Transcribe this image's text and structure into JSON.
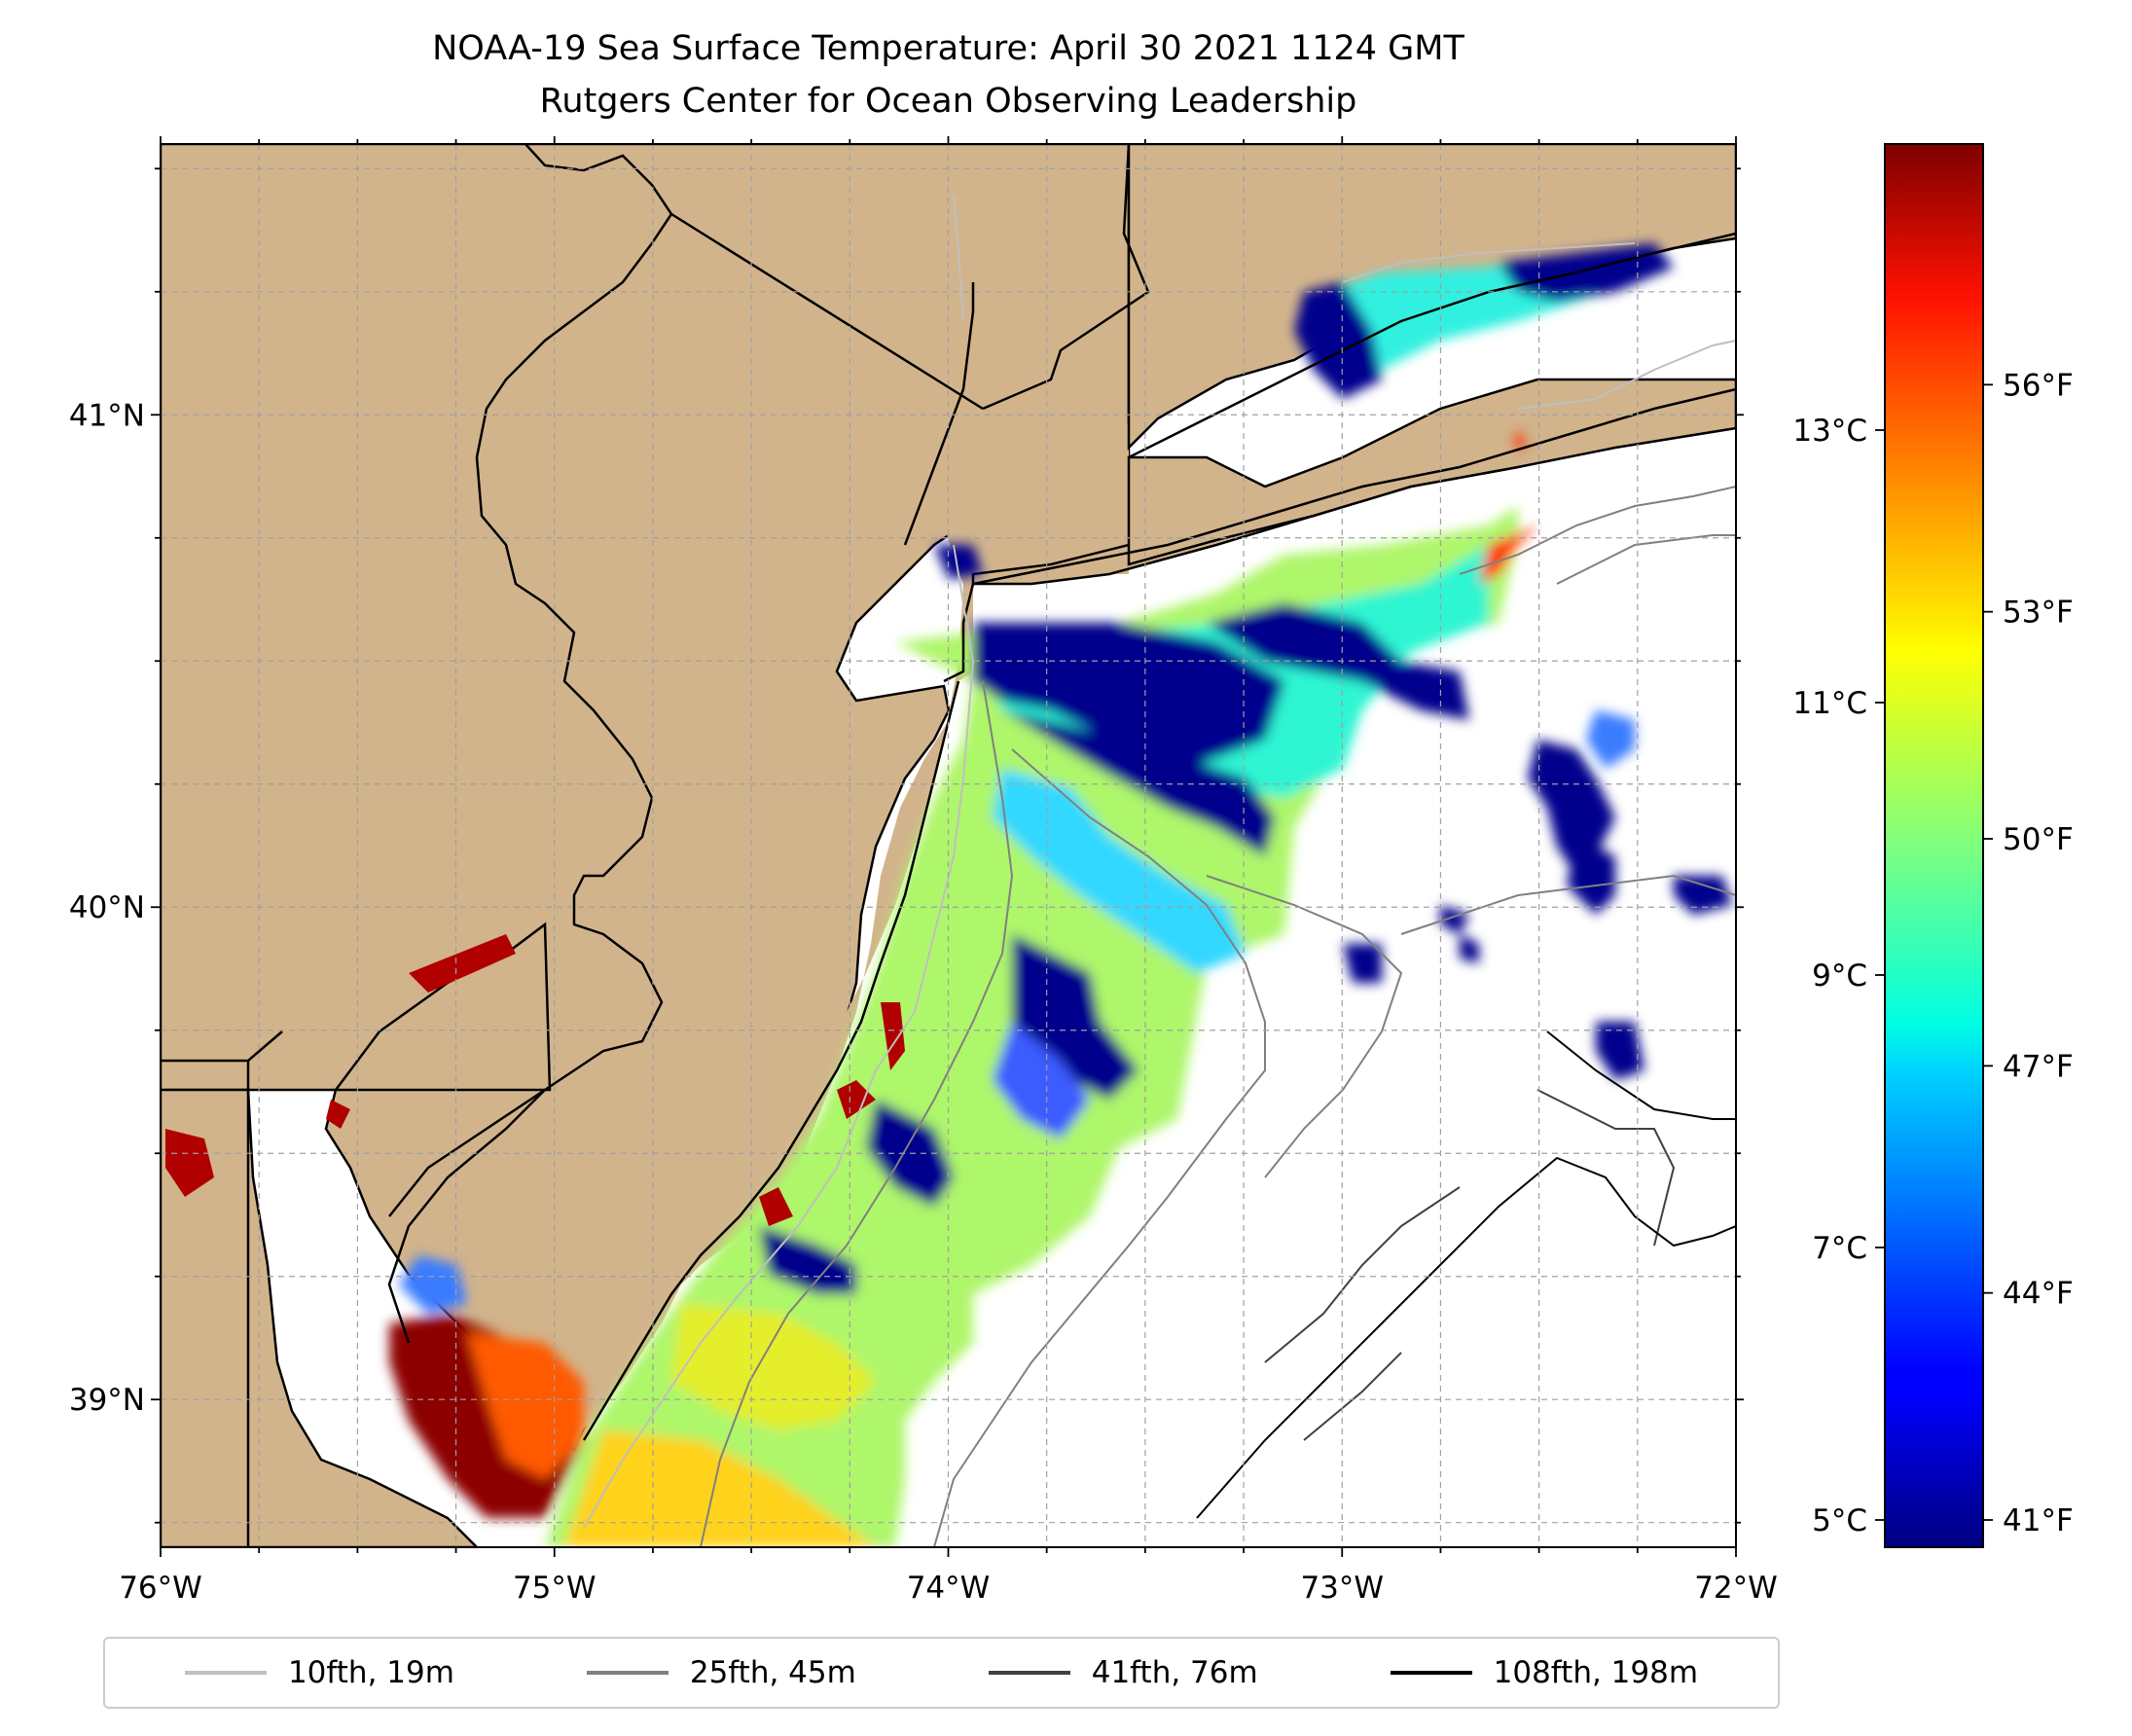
{
  "title": {
    "line1": "NOAA-19 Sea Surface Temperature: April 30 2021 1124 GMT",
    "line2": "Rutgers Center for Ocean Observing Leadership"
  },
  "map": {
    "lon_range": [
      -76.0,
      -72.0
    ],
    "lat_range": [
      38.7,
      41.55
    ],
    "land_color": "#d2b48c",
    "ocean_color": "#ffffff",
    "lon_ticks": [
      {
        "value": -76,
        "label": "76°W"
      },
      {
        "value": -75,
        "label": "75°W"
      },
      {
        "value": -74,
        "label": "74°W"
      },
      {
        "value": -73,
        "label": "73°W"
      },
      {
        "value": -72,
        "label": "72°W"
      }
    ],
    "lat_ticks": [
      {
        "value": 41,
        "label": "41°N"
      },
      {
        "value": 40,
        "label": "40°N"
      },
      {
        "value": 39,
        "label": "39°N"
      }
    ],
    "gridlines": true,
    "colormap": "jet"
  },
  "colorbar": {
    "range_c": [
      4.8,
      15.1
    ],
    "celsius_ticks": [
      {
        "value": 5,
        "label": "5°C"
      },
      {
        "value": 7,
        "label": "7°C"
      },
      {
        "value": 9,
        "label": "9°C"
      },
      {
        "value": 11,
        "label": "11°C"
      },
      {
        "value": 13,
        "label": "13°C"
      }
    ],
    "fahrenheit_ticks": [
      {
        "value": 41,
        "label": "41°F"
      },
      {
        "value": 44,
        "label": "44°F"
      },
      {
        "value": 47,
        "label": "47°F"
      },
      {
        "value": 50,
        "label": "50°F"
      },
      {
        "value": 53,
        "label": "53°F"
      },
      {
        "value": 56,
        "label": "56°F"
      }
    ]
  },
  "legend": {
    "placement": "bottom",
    "items": [
      {
        "label": "10fth, 19m",
        "color": "#bfbfbf"
      },
      {
        "label": "25fth, 45m",
        "color": "#808080"
      },
      {
        "label": "41fth, 76m",
        "color": "#404040"
      },
      {
        "label": "108fth, 198m",
        "color": "#000000"
      }
    ]
  }
}
